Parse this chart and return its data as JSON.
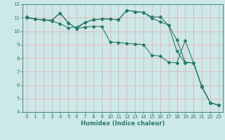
{
  "title": "",
  "xlabel": "Humidex (Indice chaleur)",
  "xlim": [
    -0.5,
    23.5
  ],
  "ylim": [
    4,
    12
  ],
  "xticks": [
    0,
    1,
    2,
    3,
    4,
    5,
    6,
    7,
    8,
    9,
    10,
    11,
    12,
    13,
    14,
    15,
    16,
    17,
    18,
    19,
    20,
    21,
    22,
    23
  ],
  "yticks": [
    4,
    5,
    6,
    7,
    8,
    9,
    10,
    11,
    12
  ],
  "bg_color": "#cde8e8",
  "grid_color": "#e8a8a8",
  "line_color": "#2a7a6a",
  "line1_x": [
    0,
    1,
    2,
    3,
    4,
    5,
    6,
    7,
    8,
    9,
    10,
    11,
    12,
    13,
    14,
    15,
    16,
    17,
    18,
    19,
    20,
    21,
    22,
    23
  ],
  "line1_y": [
    11.0,
    10.9,
    10.85,
    10.8,
    11.35,
    10.6,
    10.2,
    10.3,
    10.35,
    10.35,
    9.2,
    9.15,
    9.1,
    9.05,
    9.0,
    8.2,
    8.15,
    7.7,
    7.65,
    9.3,
    7.65,
    5.9,
    4.7,
    4.5
  ],
  "line2_x": [
    0,
    1,
    2,
    3,
    4,
    5,
    6,
    7,
    8,
    9,
    10,
    11,
    12,
    13,
    14,
    15,
    16,
    17,
    18,
    19,
    20,
    21,
    22,
    23
  ],
  "line2_y": [
    11.05,
    10.9,
    10.85,
    10.75,
    10.55,
    10.25,
    10.3,
    10.65,
    10.85,
    10.9,
    10.9,
    10.85,
    11.55,
    11.45,
    11.4,
    10.95,
    10.7,
    10.45,
    8.5,
    7.65,
    7.65,
    5.85,
    4.7,
    4.5
  ],
  "line3_x": [
    0,
    1,
    2,
    3,
    4,
    5,
    6,
    7,
    8,
    9,
    10,
    11,
    12,
    13,
    14,
    15,
    16,
    17,
    18,
    19,
    20,
    21,
    22,
    23
  ],
  "line3_y": [
    11.0,
    10.9,
    10.85,
    10.8,
    11.35,
    10.6,
    10.2,
    10.65,
    10.85,
    10.9,
    10.9,
    10.85,
    11.55,
    11.45,
    11.4,
    11.05,
    11.05,
    10.45,
    9.35,
    7.7,
    7.65,
    5.85,
    4.7,
    4.5
  ],
  "marker_style": "D",
  "marker_size": 2,
  "linewidth": 0.8,
  "tick_fontsize": 5,
  "xlabel_fontsize": 6
}
